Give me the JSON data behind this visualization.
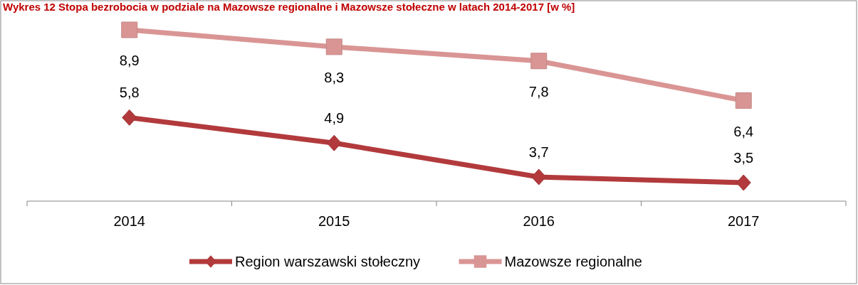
{
  "chart_data": {
    "type": "line",
    "title": "Wykres 12 Stopa bezrobocia w podziale na Mazowsze regionalne i Mazowsze stołeczne w latach 2014-2017 [w %]",
    "categories": [
      "2014",
      "2015",
      "2016",
      "2017"
    ],
    "series": [
      {
        "name": "Region warszawski stołeczny",
        "color": "#b23a3c",
        "marker": "diamond",
        "values": [
          5.8,
          4.9,
          3.7,
          3.5
        ],
        "value_labels": [
          "5,8",
          "4,9",
          "3,7",
          "3,5"
        ]
      },
      {
        "name": "Mazowsze regionalne",
        "color": "#d99594",
        "marker": "square",
        "values": [
          8.9,
          8.3,
          7.8,
          6.4
        ],
        "value_labels": [
          "8,9",
          "8,3",
          "7,8",
          "6,4"
        ]
      }
    ],
    "tick_labels": "x",
    "legend": "bottom"
  }
}
